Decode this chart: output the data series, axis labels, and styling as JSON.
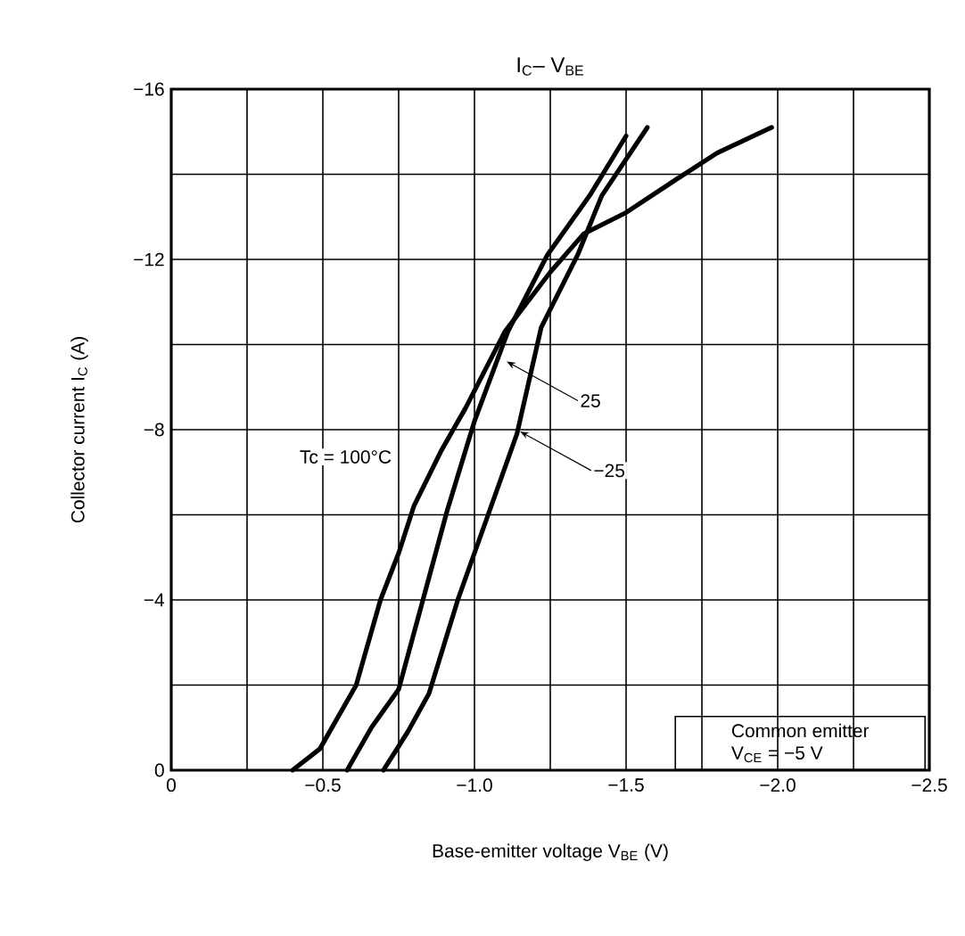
{
  "chart_data": {
    "type": "line",
    "title": "I$_{C}$– V$_{BE}$",
    "xlabel": "Base-emitter voltage   V$_{BE}$   (V)",
    "ylabel": "Collector current   I$_{C}$   (A)",
    "xlim": [
      0,
      -2.5
    ],
    "ylim": [
      0,
      -16
    ],
    "xticks": [
      {
        "value": 0,
        "label": "0"
      },
      {
        "value": -0.25,
        "label": null
      },
      {
        "value": -0.5,
        "label": "−0.5"
      },
      {
        "value": -0.75,
        "label": null
      },
      {
        "value": -1.0,
        "label": "−1.0"
      },
      {
        "value": -1.25,
        "label": null
      },
      {
        "value": -1.5,
        "label": "−1.5"
      },
      {
        "value": -1.75,
        "label": null
      },
      {
        "value": -2.0,
        "label": "−2.0"
      },
      {
        "value": -2.25,
        "label": null
      },
      {
        "value": -2.5,
        "label": "−2.5"
      }
    ],
    "yticks": [
      {
        "value": 0,
        "label": "0"
      },
      {
        "value": -2,
        "label": null
      },
      {
        "value": -4,
        "label": "−4"
      },
      {
        "value": -6,
        "label": null
      },
      {
        "value": -8,
        "label": "−8"
      },
      {
        "value": -10,
        "label": null
      },
      {
        "value": -12,
        "label": "−12"
      },
      {
        "value": -14,
        "label": null
      },
      {
        "value": -16,
        "label": "−16"
      }
    ],
    "grid": true,
    "line_style": "solid",
    "series": [
      {
        "color": "#000000",
        "x": [
          -0.4,
          -0.49,
          -0.61,
          -0.69,
          -0.75,
          -0.8,
          -0.89,
          -0.97,
          -1.1,
          -1.25,
          -1.36,
          -1.5,
          -1.67,
          -1.8,
          -1.98
        ],
        "values": [
          0,
          -0.5,
          -2.0,
          -4.0,
          -5.1,
          -6.2,
          -7.5,
          -8.5,
          -10.3,
          -11.7,
          -12.6,
          -13.1,
          -13.9,
          -14.5,
          -15.1
        ]
      },
      {
        "color": "#000000",
        "x": [
          -0.58,
          -0.66,
          -0.75,
          -0.83,
          -0.91,
          -1.0,
          -1.11,
          -1.24,
          -1.38,
          -1.5
        ],
        "values": [
          0,
          -1.0,
          -1.9,
          -4.0,
          -6.1,
          -8.2,
          -10.3,
          -12.1,
          -13.5,
          -14.9
        ]
      },
      {
        "color": "#000000",
        "x": [
          -0.7,
          -0.78,
          -0.85,
          -0.945,
          -1.04,
          -1.14,
          -1.22,
          -1.34,
          -1.42,
          -1.57
        ],
        "values": [
          0,
          -0.9,
          -1.8,
          -4.0,
          -5.9,
          -7.9,
          -10.4,
          -12.1,
          -13.5,
          -15.1
        ]
      }
    ],
    "annotations": [
      "Tc = 100°C",
      {
        "text": "25",
        "x": -1.106,
        "y": -9.6
      },
      {
        "text": "−25",
        "x": -1.15,
        "y": -7.96
      },
      "Common emitter",
      "V$_{CE}$ = −5 V"
    ]
  }
}
